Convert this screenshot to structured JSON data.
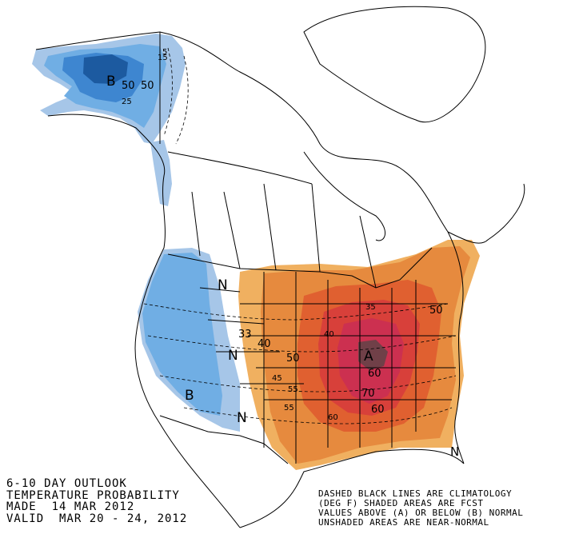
{
  "title": {
    "line1": "6-10 DAY OUTLOOK",
    "line2": "TEMPERATURE PROBABILITY",
    "line3": "MADE  14 MAR 2012",
    "line4": "VALID  MAR 20 - 24, 2012"
  },
  "legend": {
    "line1": "DASHED BLACK LINES ARE CLIMATOLOGY",
    "line2": "(DEG F) SHADED AREAS ARE FCST",
    "line3": "VALUES ABOVE (A) OR BELOW (B) NORMAL",
    "line4": "UNSHADED AREAS ARE NEAR-NORMAL"
  },
  "map_labels": {
    "B_alaska": "B",
    "B_west": "B",
    "A_center": "A",
    "N_1": "N",
    "N_2": "N",
    "N_3": "N",
    "N_4": "N",
    "ak_50": "50",
    "ak_50b": "50",
    "ak_25": "25",
    "ak_15": "15",
    "ak_5": "5",
    "c33": "33",
    "c40": "40",
    "c40b": "40",
    "c50": "50",
    "c50b": "50",
    "c60": "60",
    "c70": "70",
    "c60b": "60",
    "c55": "55",
    "c55b": "55",
    "c45": "45",
    "c35": "35",
    "c60c": "60"
  },
  "colors": {
    "above_33": "#f0b060",
    "above_40": "#e68a3e",
    "above_50": "#e06030",
    "above_60": "#d8403a",
    "above_70": "#cc3050",
    "above_80": "#704048",
    "below_33": "#a6c6e8",
    "below_40": "#70aee4",
    "below_50": "#3e86d0",
    "below_60": "#1c5aa0"
  }
}
